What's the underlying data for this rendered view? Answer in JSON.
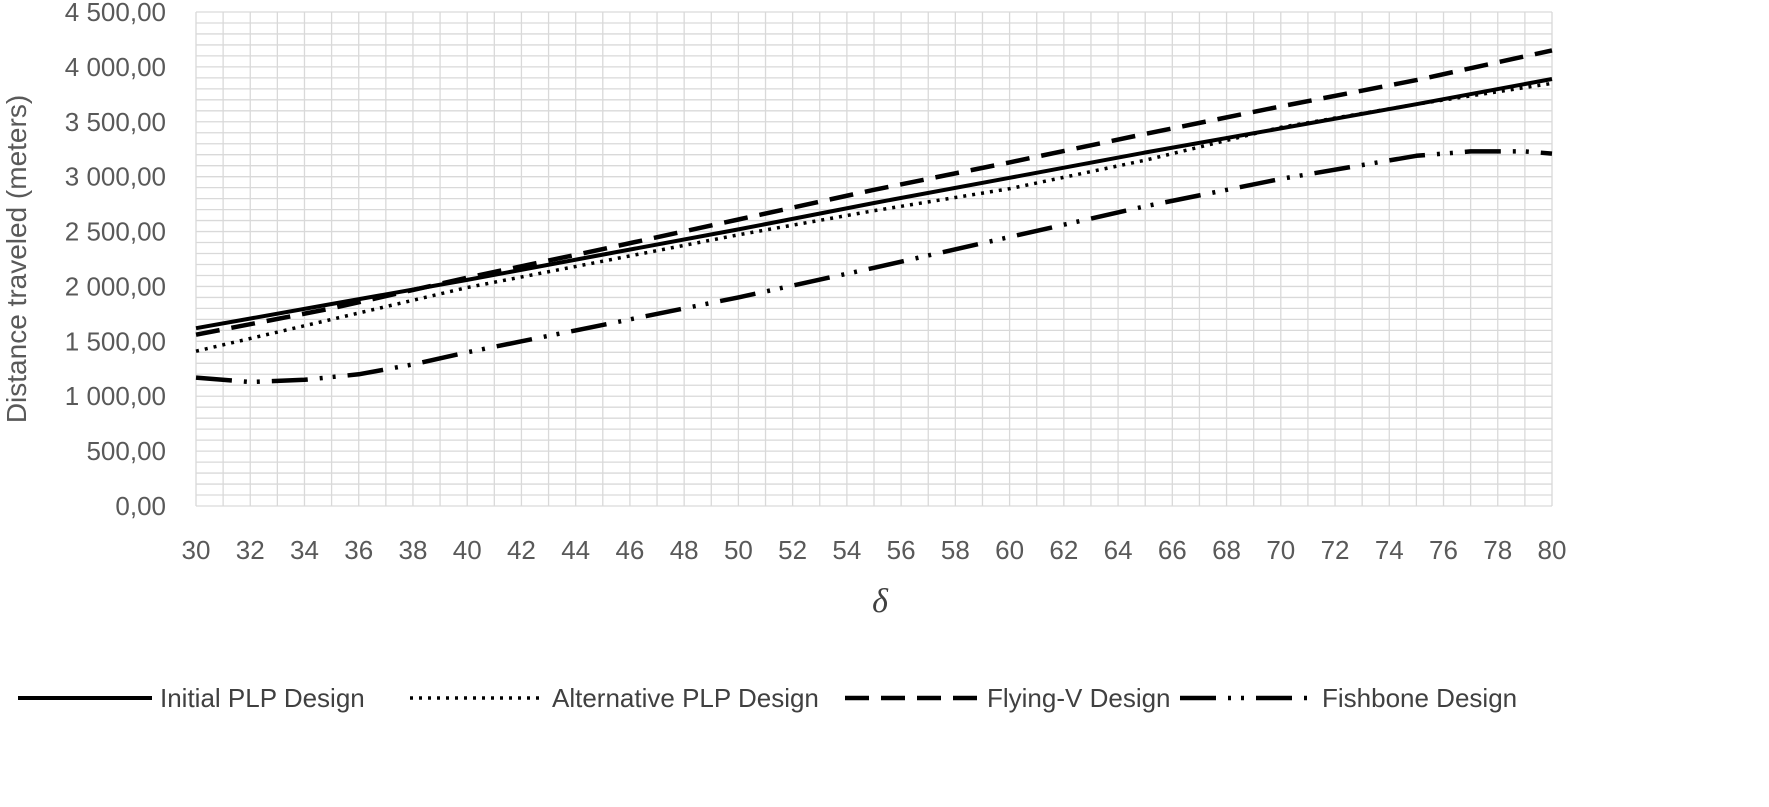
{
  "chart_data": {
    "type": "line",
    "title": "",
    "xlabel": "δ",
    "ylabel": "Distance traveled (meters)",
    "xlim": [
      30,
      80
    ],
    "ylim": [
      0,
      4500
    ],
    "x_ticks": [
      "30",
      "32",
      "34",
      "36",
      "38",
      "40",
      "42",
      "44",
      "46",
      "48",
      "50",
      "52",
      "54",
      "56",
      "58",
      "60",
      "62",
      "64",
      "66",
      "68",
      "70",
      "72",
      "74",
      "76",
      "78",
      "80"
    ],
    "y_ticks": [
      {
        "value": 0,
        "label": "0,00"
      },
      {
        "value": 500,
        "label": "500,00"
      },
      {
        "value": 1000,
        "label": "1 000,00"
      },
      {
        "value": 1500,
        "label": "1 500,00"
      },
      {
        "value": 2000,
        "label": "2 000,00"
      },
      {
        "value": 2500,
        "label": "2 500,00"
      },
      {
        "value": 3000,
        "label": "3 000,00"
      },
      {
        "value": 3500,
        "label": "3 500,00"
      },
      {
        "value": 4000,
        "label": "4 000,00"
      },
      {
        "value": 4500,
        "label": "4 500,00"
      }
    ],
    "grid": true,
    "legend_position": "bottom",
    "series": [
      {
        "name": "Initial PLP Design",
        "style": "solid",
        "x": [
          30,
          35,
          40,
          45,
          50,
          55,
          60,
          65,
          70,
          75,
          80
        ],
        "y": [
          1620,
          1840,
          2060,
          2290,
          2520,
          2760,
          2990,
          3220,
          3440,
          3660,
          3890
        ]
      },
      {
        "name": "Alternative PLP Design",
        "style": "dotted",
        "x": [
          30,
          35,
          40,
          45,
          50,
          55,
          60,
          65,
          70,
          75,
          80
        ],
        "y": [
          1410,
          1700,
          1990,
          2230,
          2470,
          2690,
          2890,
          3150,
          3450,
          3660,
          3850
        ]
      },
      {
        "name": "Flying-V Design",
        "style": "dashed",
        "x": [
          30,
          35,
          40,
          45,
          50,
          55,
          60,
          65,
          70,
          75,
          80
        ],
        "y": [
          1560,
          1800,
          2080,
          2340,
          2610,
          2880,
          3130,
          3390,
          3640,
          3880,
          4150
        ]
      },
      {
        "name": "Fishbone Design",
        "style": "dash-dot-dot",
        "x": [
          30,
          32,
          34,
          36,
          38,
          40,
          42,
          44,
          46,
          48,
          50,
          55,
          60,
          65,
          70,
          75,
          77,
          79,
          80
        ],
        "y": [
          1170,
          1130,
          1150,
          1200,
          1290,
          1400,
          1500,
          1600,
          1700,
          1800,
          1900,
          2170,
          2450,
          2730,
          2980,
          3190,
          3230,
          3230,
          3210
        ]
      }
    ]
  },
  "colors": {
    "axis_text": "#595959",
    "grid": "#d9d9d9",
    "line": "#000000"
  }
}
